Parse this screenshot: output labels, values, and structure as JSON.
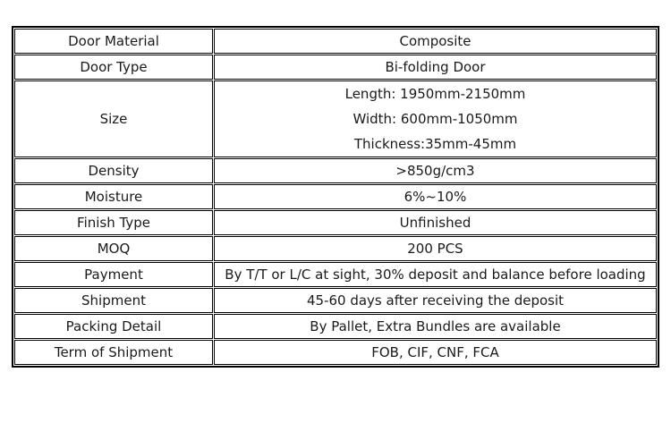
{
  "page": {
    "background_color": "#ffffff",
    "border_color": "#000000",
    "text_color": "#1a1a1a"
  },
  "table": {
    "rows": [
      {
        "label": "Door Material",
        "value": "Composite"
      },
      {
        "label": "Door Type",
        "value": "Bi-folding Door"
      },
      {
        "label": "Size",
        "value_lines": [
          "Length: 1950mm-2150mm",
          "Width: 600mm-1050mm",
          "Thickness:35mm-45mm"
        ]
      },
      {
        "label": "Density",
        "value": ">850g/cm3"
      },
      {
        "label": "Moisture",
        "value": "6%~10%"
      },
      {
        "label": "Finish Type",
        "value": "Unfinished"
      },
      {
        "label": "MOQ",
        "value": "200 PCS"
      },
      {
        "label": "Payment",
        "value": "By T/T or L/C at sight, 30% deposit and balance before loading",
        "value_align": "left",
        "label_valign": "top"
      },
      {
        "label": "Shipment",
        "value": "45-60 days after receiving the deposit"
      },
      {
        "label": "Packing Detail",
        "value": "By Pallet, Extra Bundles are available"
      },
      {
        "label": "Term of Shipment",
        "value": "FOB, CIF, CNF, FCA"
      }
    ]
  }
}
